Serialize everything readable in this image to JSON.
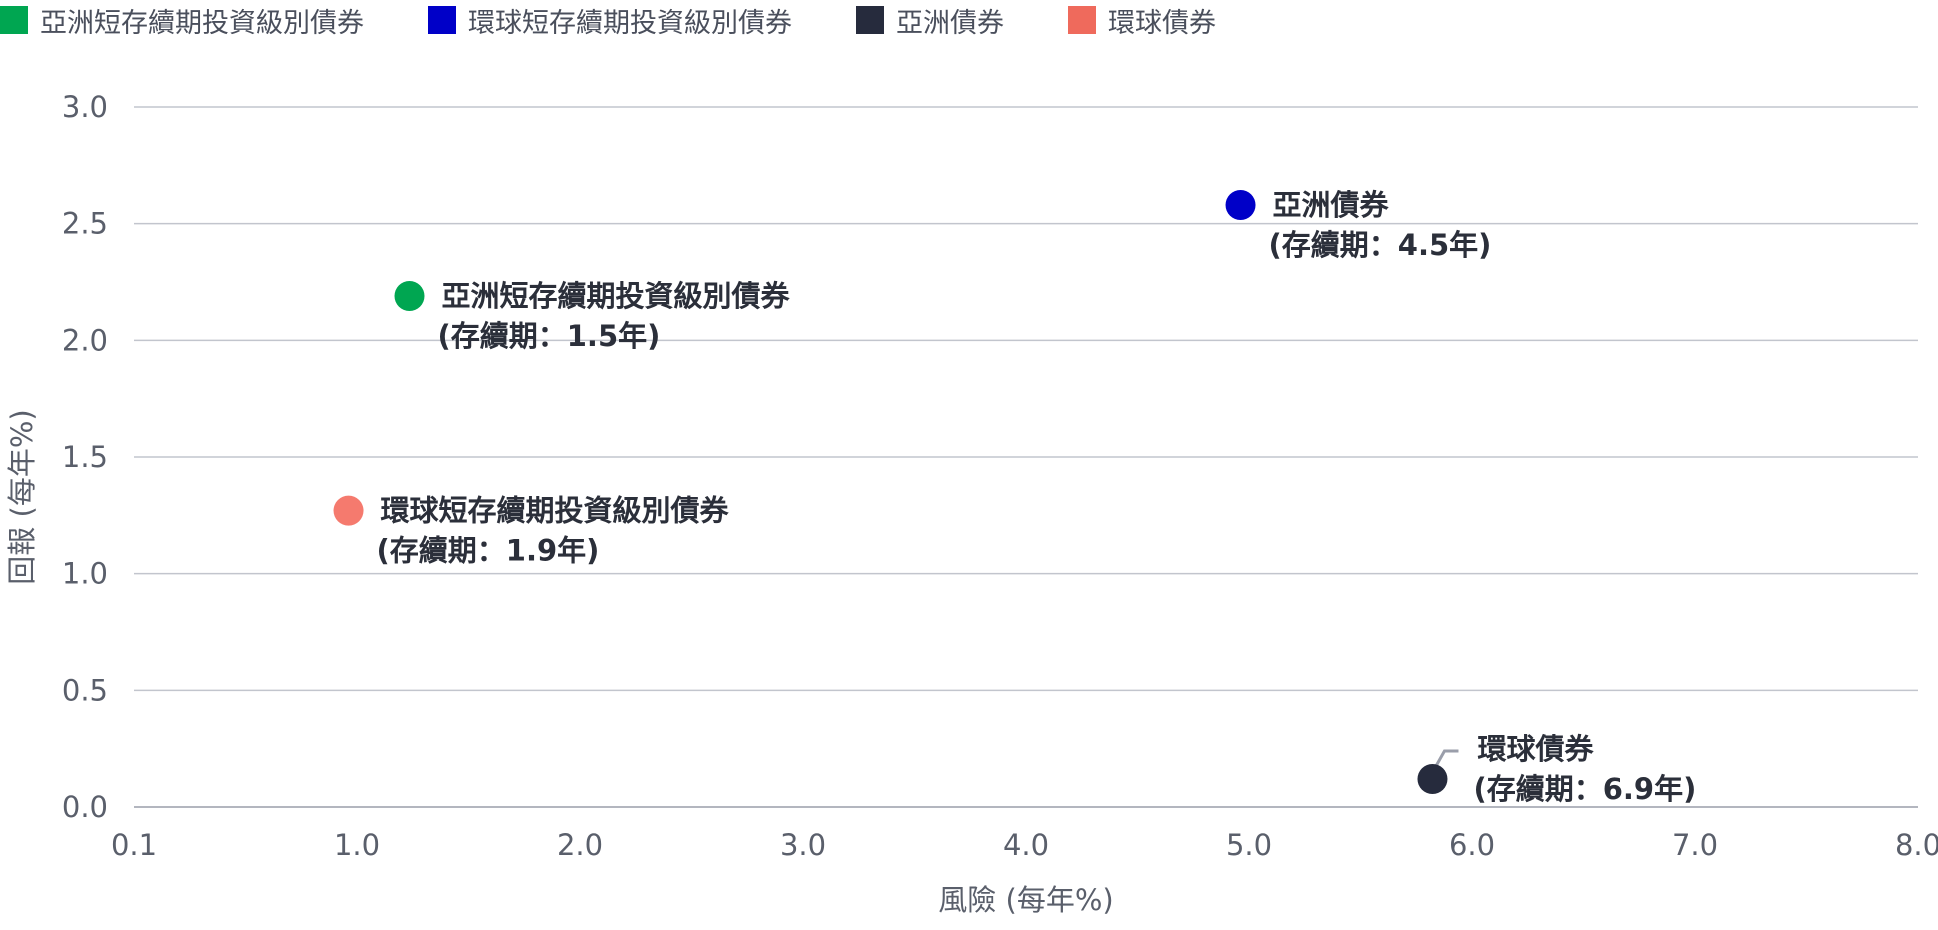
{
  "chart_data": {
    "type": "scatter",
    "xlabel": "風險 (每年%)",
    "ylabel": "回報 (每年%)",
    "x_ticks": [
      "0.1",
      "1.0",
      "2.0",
      "3.0",
      "4.0",
      "5.0",
      "6.0",
      "7.0",
      "8.0"
    ],
    "y_ticks": [
      "0.0",
      "0.5",
      "1.0",
      "1.5",
      "2.0",
      "2.5",
      "3.0"
    ],
    "xlim": [
      0.1,
      8.0
    ],
    "ylim": [
      0.0,
      3.0
    ],
    "grid": "horizontal",
    "legend_position": "top-left",
    "series": [
      {
        "name": "亞洲短存續期投資級別債券",
        "legend_color": "#00a651",
        "marker_color": "#00a651",
        "x": 1.32,
        "y": 2.19,
        "label_line1": "亞洲短存續期投資級別債券",
        "label_line2": "(存續期：1.5年)"
      },
      {
        "name": "環球短存續期投資級別債券",
        "legend_color": "#0000c8",
        "marker_color": "#f57a6e",
        "x": 1.05,
        "y": 1.27,
        "label_line1": "環球短存續期投資級別債券",
        "label_line2": "(存續期：1.9年)"
      },
      {
        "name": "亞洲債券",
        "legend_color": "#262b3d",
        "marker_color": "#0000c8",
        "x": 5.0,
        "y": 2.58,
        "label_line1": "亞洲債券",
        "label_line2": "(存續期：4.5年)"
      },
      {
        "name": "環球債券",
        "legend_color": "#ef6a5c",
        "marker_color": "#262b3d",
        "x": 5.85,
        "y": 0.12,
        "label_line1": "環球債券",
        "label_line2": "(存續期：6.9年)"
      }
    ]
  }
}
